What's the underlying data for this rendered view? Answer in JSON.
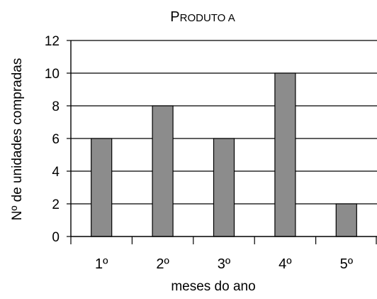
{
  "chart_data": {
    "type": "bar",
    "title": "Produto A",
    "xlabel": "meses do ano",
    "ylabel": "Nº de unidades compradas",
    "categories": [
      "1º",
      "2º",
      "3º",
      "4º",
      "5º"
    ],
    "values": [
      6,
      8,
      6,
      10,
      2
    ],
    "ylim": [
      0,
      12
    ],
    "yticks": [
      0,
      2,
      4,
      6,
      8,
      10,
      12
    ],
    "grid": true,
    "colors": {
      "bar": "#8c8c8c",
      "bar_edge": "#000000",
      "grid": "#000000"
    }
  }
}
